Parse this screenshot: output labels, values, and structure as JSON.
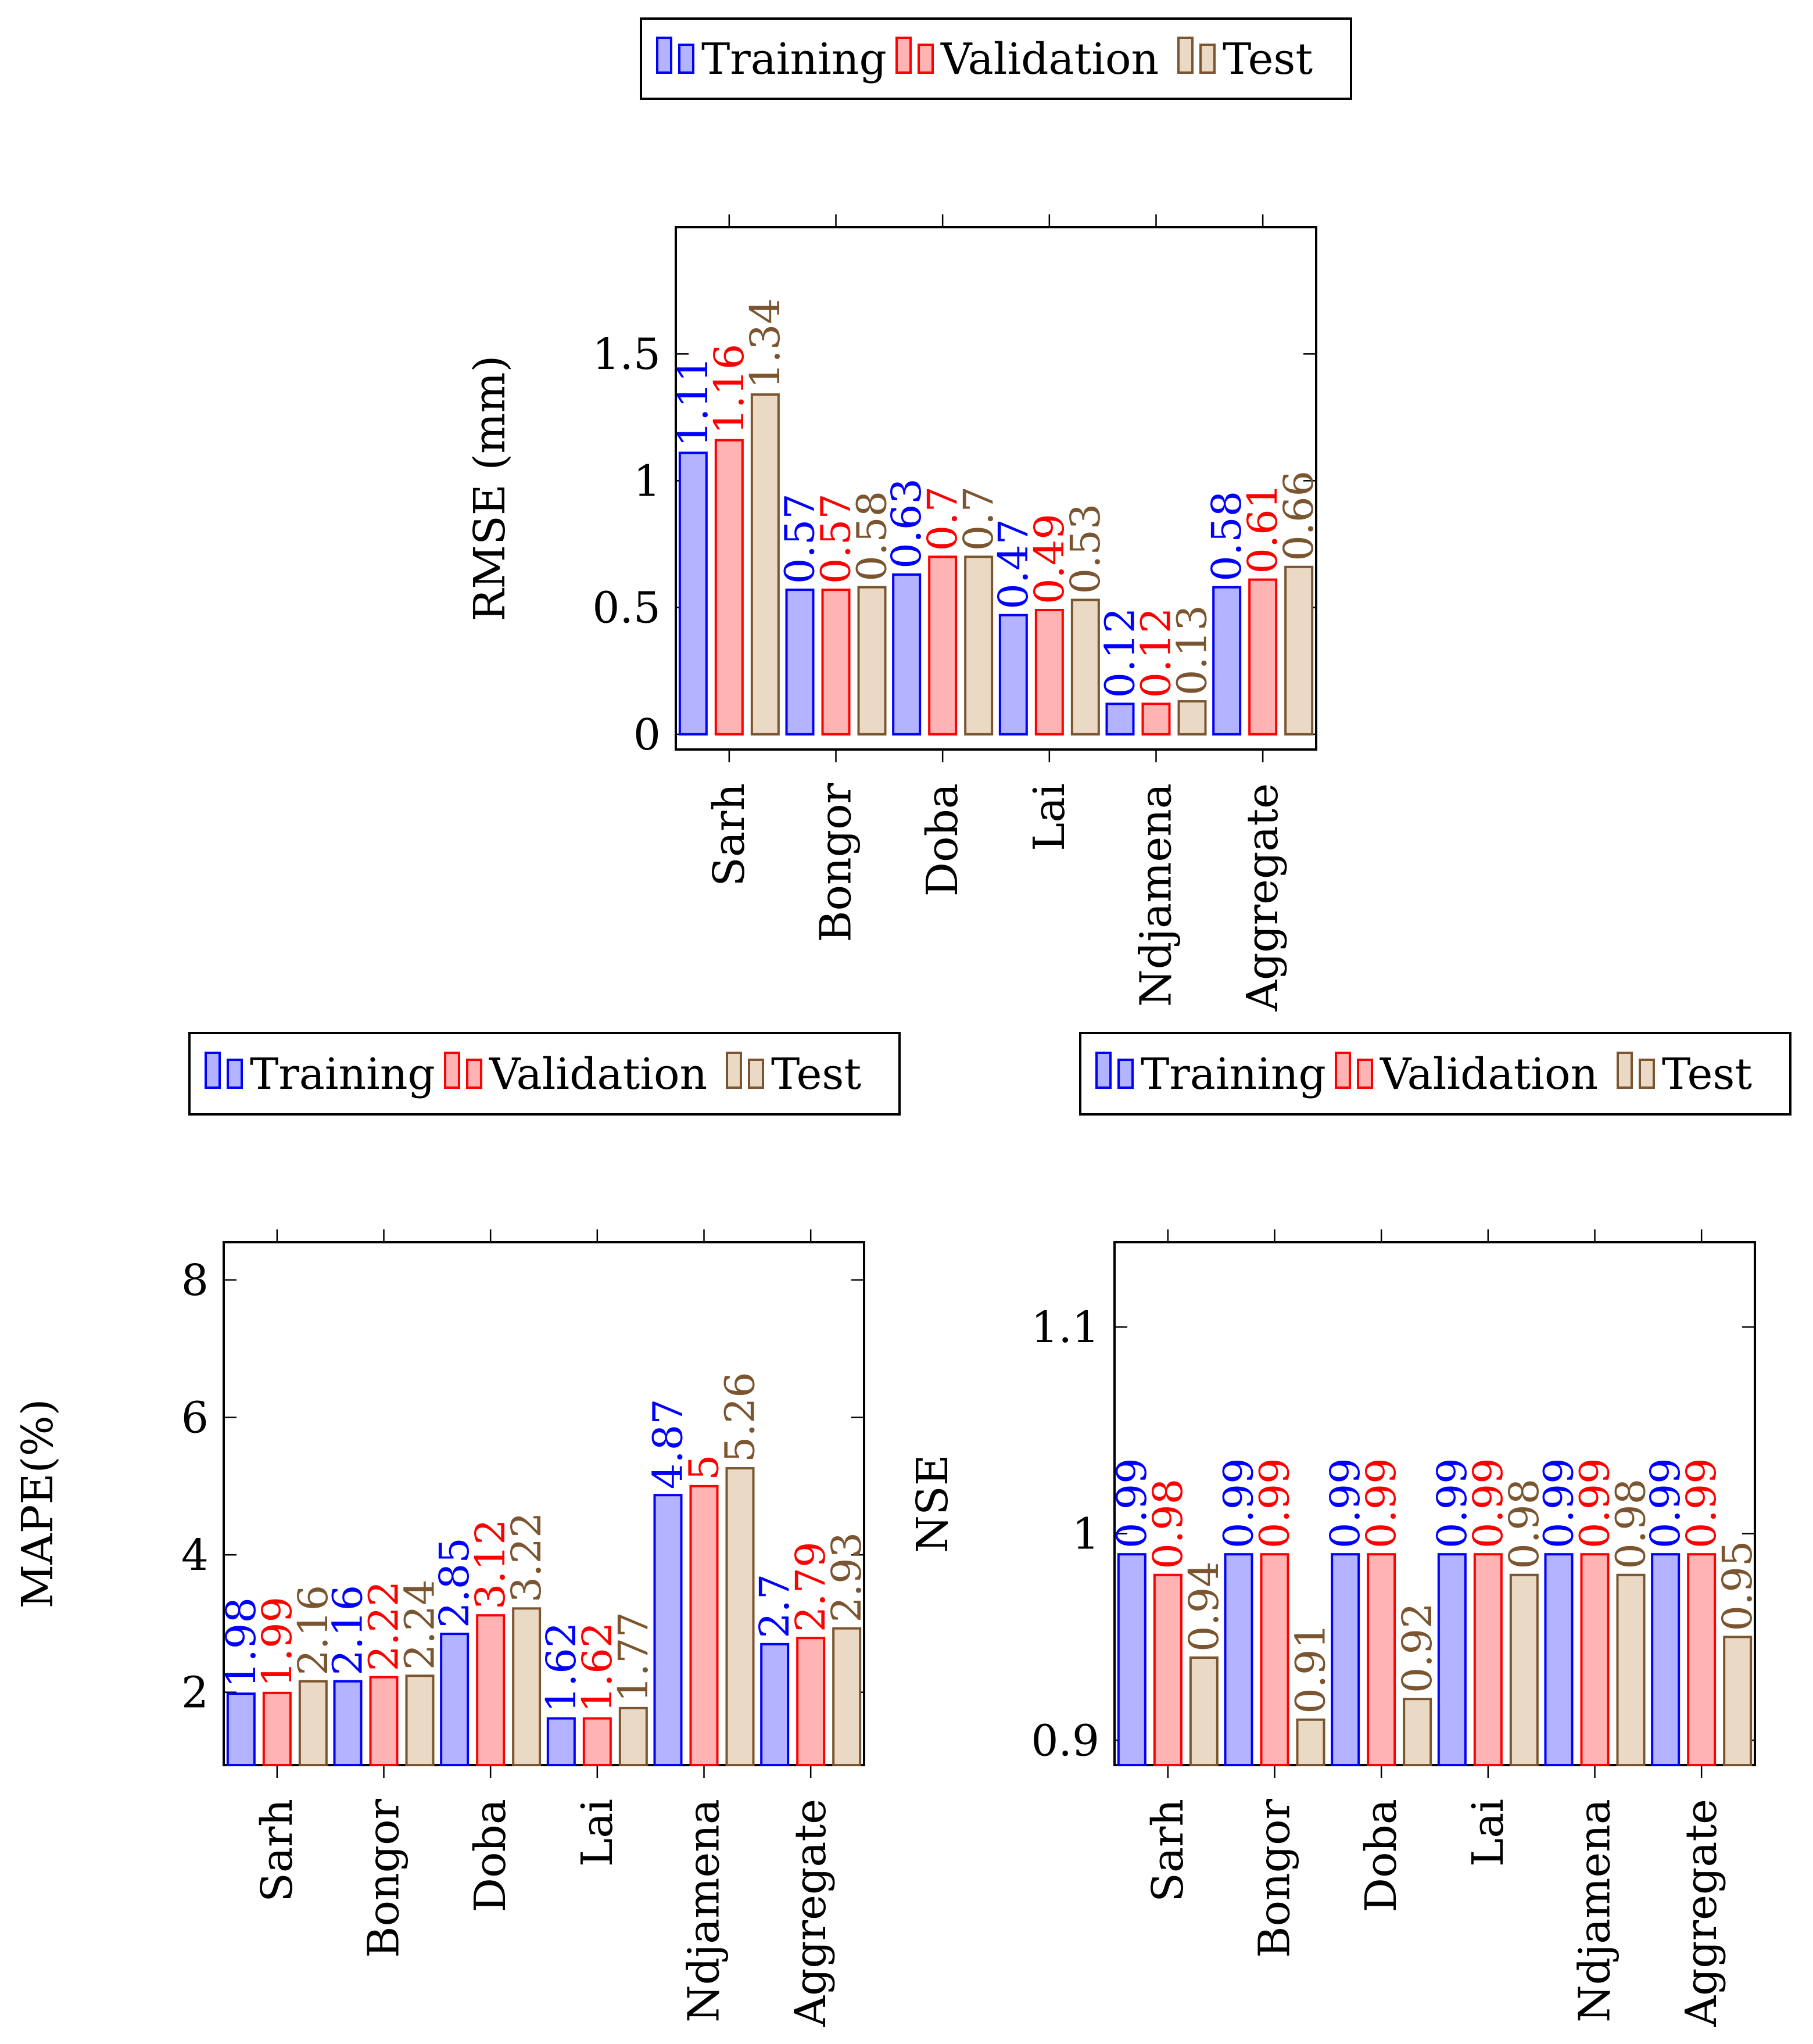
{
  "legend_labels": [
    "Training",
    "Validation",
    "Test"
  ],
  "colors": {
    "training": {
      "stroke": "#0000ff",
      "fill": "#b3b3ff"
    },
    "validation": {
      "stroke": "#ff0000",
      "fill": "#ffb3b3"
    },
    "test": {
      "stroke": "#7a5530",
      "fill": "#ead9c4"
    }
  },
  "chart_data": [
    {
      "type": "bar",
      "ylabel": "RMSE (mm)",
      "categories": [
        "Sarh",
        "Bongor",
        "Doba",
        "Lai",
        "Ndjamena",
        "Aggregate"
      ],
      "series": [
        {
          "name": "Training",
          "values": [
            1.11,
            0.57,
            0.63,
            0.47,
            0.12,
            0.58
          ]
        },
        {
          "name": "Validation",
          "values": [
            1.16,
            0.57,
            0.7,
            0.49,
            0.12,
            0.61
          ]
        },
        {
          "name": "Test",
          "values": [
            1.34,
            0.58,
            0.7,
            0.53,
            0.13,
            0.66
          ]
        }
      ],
      "ylim": [
        -0.06,
        2.0
      ],
      "baseline": 0,
      "yticks": [
        0,
        0.5,
        1,
        1.5
      ],
      "ytick_labels": [
        "0",
        "0.5",
        "1",
        "1.5"
      ],
      "legend_position": "top-center"
    },
    {
      "type": "bar",
      "ylabel": "MAPE(%)",
      "categories": [
        "Sarh",
        "Bongor",
        "Doba",
        "Lai",
        "Ndjamena",
        "Aggregate"
      ],
      "series": [
        {
          "name": "Training",
          "values": [
            1.98,
            2.16,
            2.85,
            1.62,
            4.87,
            2.7
          ]
        },
        {
          "name": "Validation",
          "values": [
            1.99,
            2.22,
            3.12,
            1.62,
            5,
            2.79
          ]
        },
        {
          "name": "Test",
          "values": [
            2.16,
            2.24,
            3.22,
            1.77,
            5.26,
            2.93
          ]
        }
      ],
      "ylim": [
        0.94,
        8.55
      ],
      "baseline": 0.94,
      "yticks": [
        2,
        4,
        6,
        8
      ],
      "ytick_labels": [
        "2",
        "4",
        "6",
        "8"
      ],
      "legend_position": "top-left"
    },
    {
      "type": "bar",
      "ylabel": "NSE",
      "categories": [
        "Sarh",
        "Bongor",
        "Doba",
        "Lai",
        "Ndjamena",
        "Aggregate"
      ],
      "series": [
        {
          "name": "Training",
          "values": [
            0.99,
            0.99,
            0.99,
            0.99,
            0.99,
            0.99
          ]
        },
        {
          "name": "Validation",
          "values": [
            0.98,
            0.99,
            0.99,
            0.99,
            0.99,
            0.99
          ]
        },
        {
          "name": "Test",
          "values": [
            0.94,
            0.91,
            0.92,
            0.98,
            0.98,
            0.95
          ]
        }
      ],
      "ylim": [
        0.888,
        1.141
      ],
      "baseline": 0.888,
      "yticks": [
        0.9,
        1,
        1.1
      ],
      "ytick_labels": [
        "0.9",
        "1",
        "1.1"
      ],
      "legend_position": "top-right"
    }
  ]
}
